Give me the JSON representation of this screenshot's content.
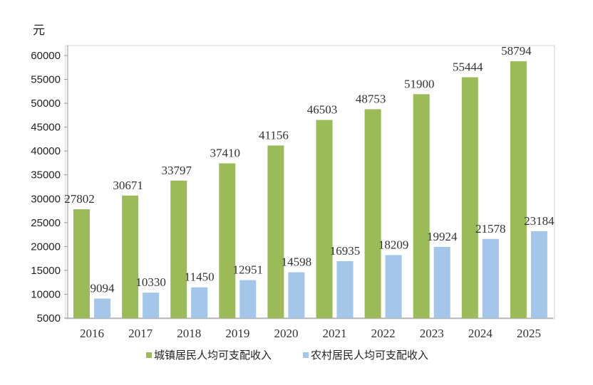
{
  "chart_data": {
    "type": "bar",
    "unit_label": "元",
    "categories": [
      "2016",
      "2017",
      "2018",
      "2019",
      "2020",
      "2021",
      "2022",
      "2023",
      "2024",
      "2025"
    ],
    "series": [
      {
        "name": "城镇居民人均可支配收入",
        "color": "#9bbb59",
        "values": [
          27802,
          30671,
          33797,
          37410,
          41156,
          46503,
          48753,
          51900,
          55444,
          58794
        ]
      },
      {
        "name": "农村居民人均可支配收入",
        "color": "#a3c6e9",
        "values": [
          9094,
          10330,
          11450,
          12951,
          14598,
          16935,
          18209,
          19924,
          21578,
          23184
        ]
      }
    ],
    "ylim": [
      5000,
      60000
    ],
    "yticks": [
      5000,
      10000,
      15000,
      20000,
      25000,
      30000,
      35000,
      40000,
      45000,
      50000,
      55000,
      60000
    ],
    "legend_position": "bottom",
    "grid": false
  }
}
